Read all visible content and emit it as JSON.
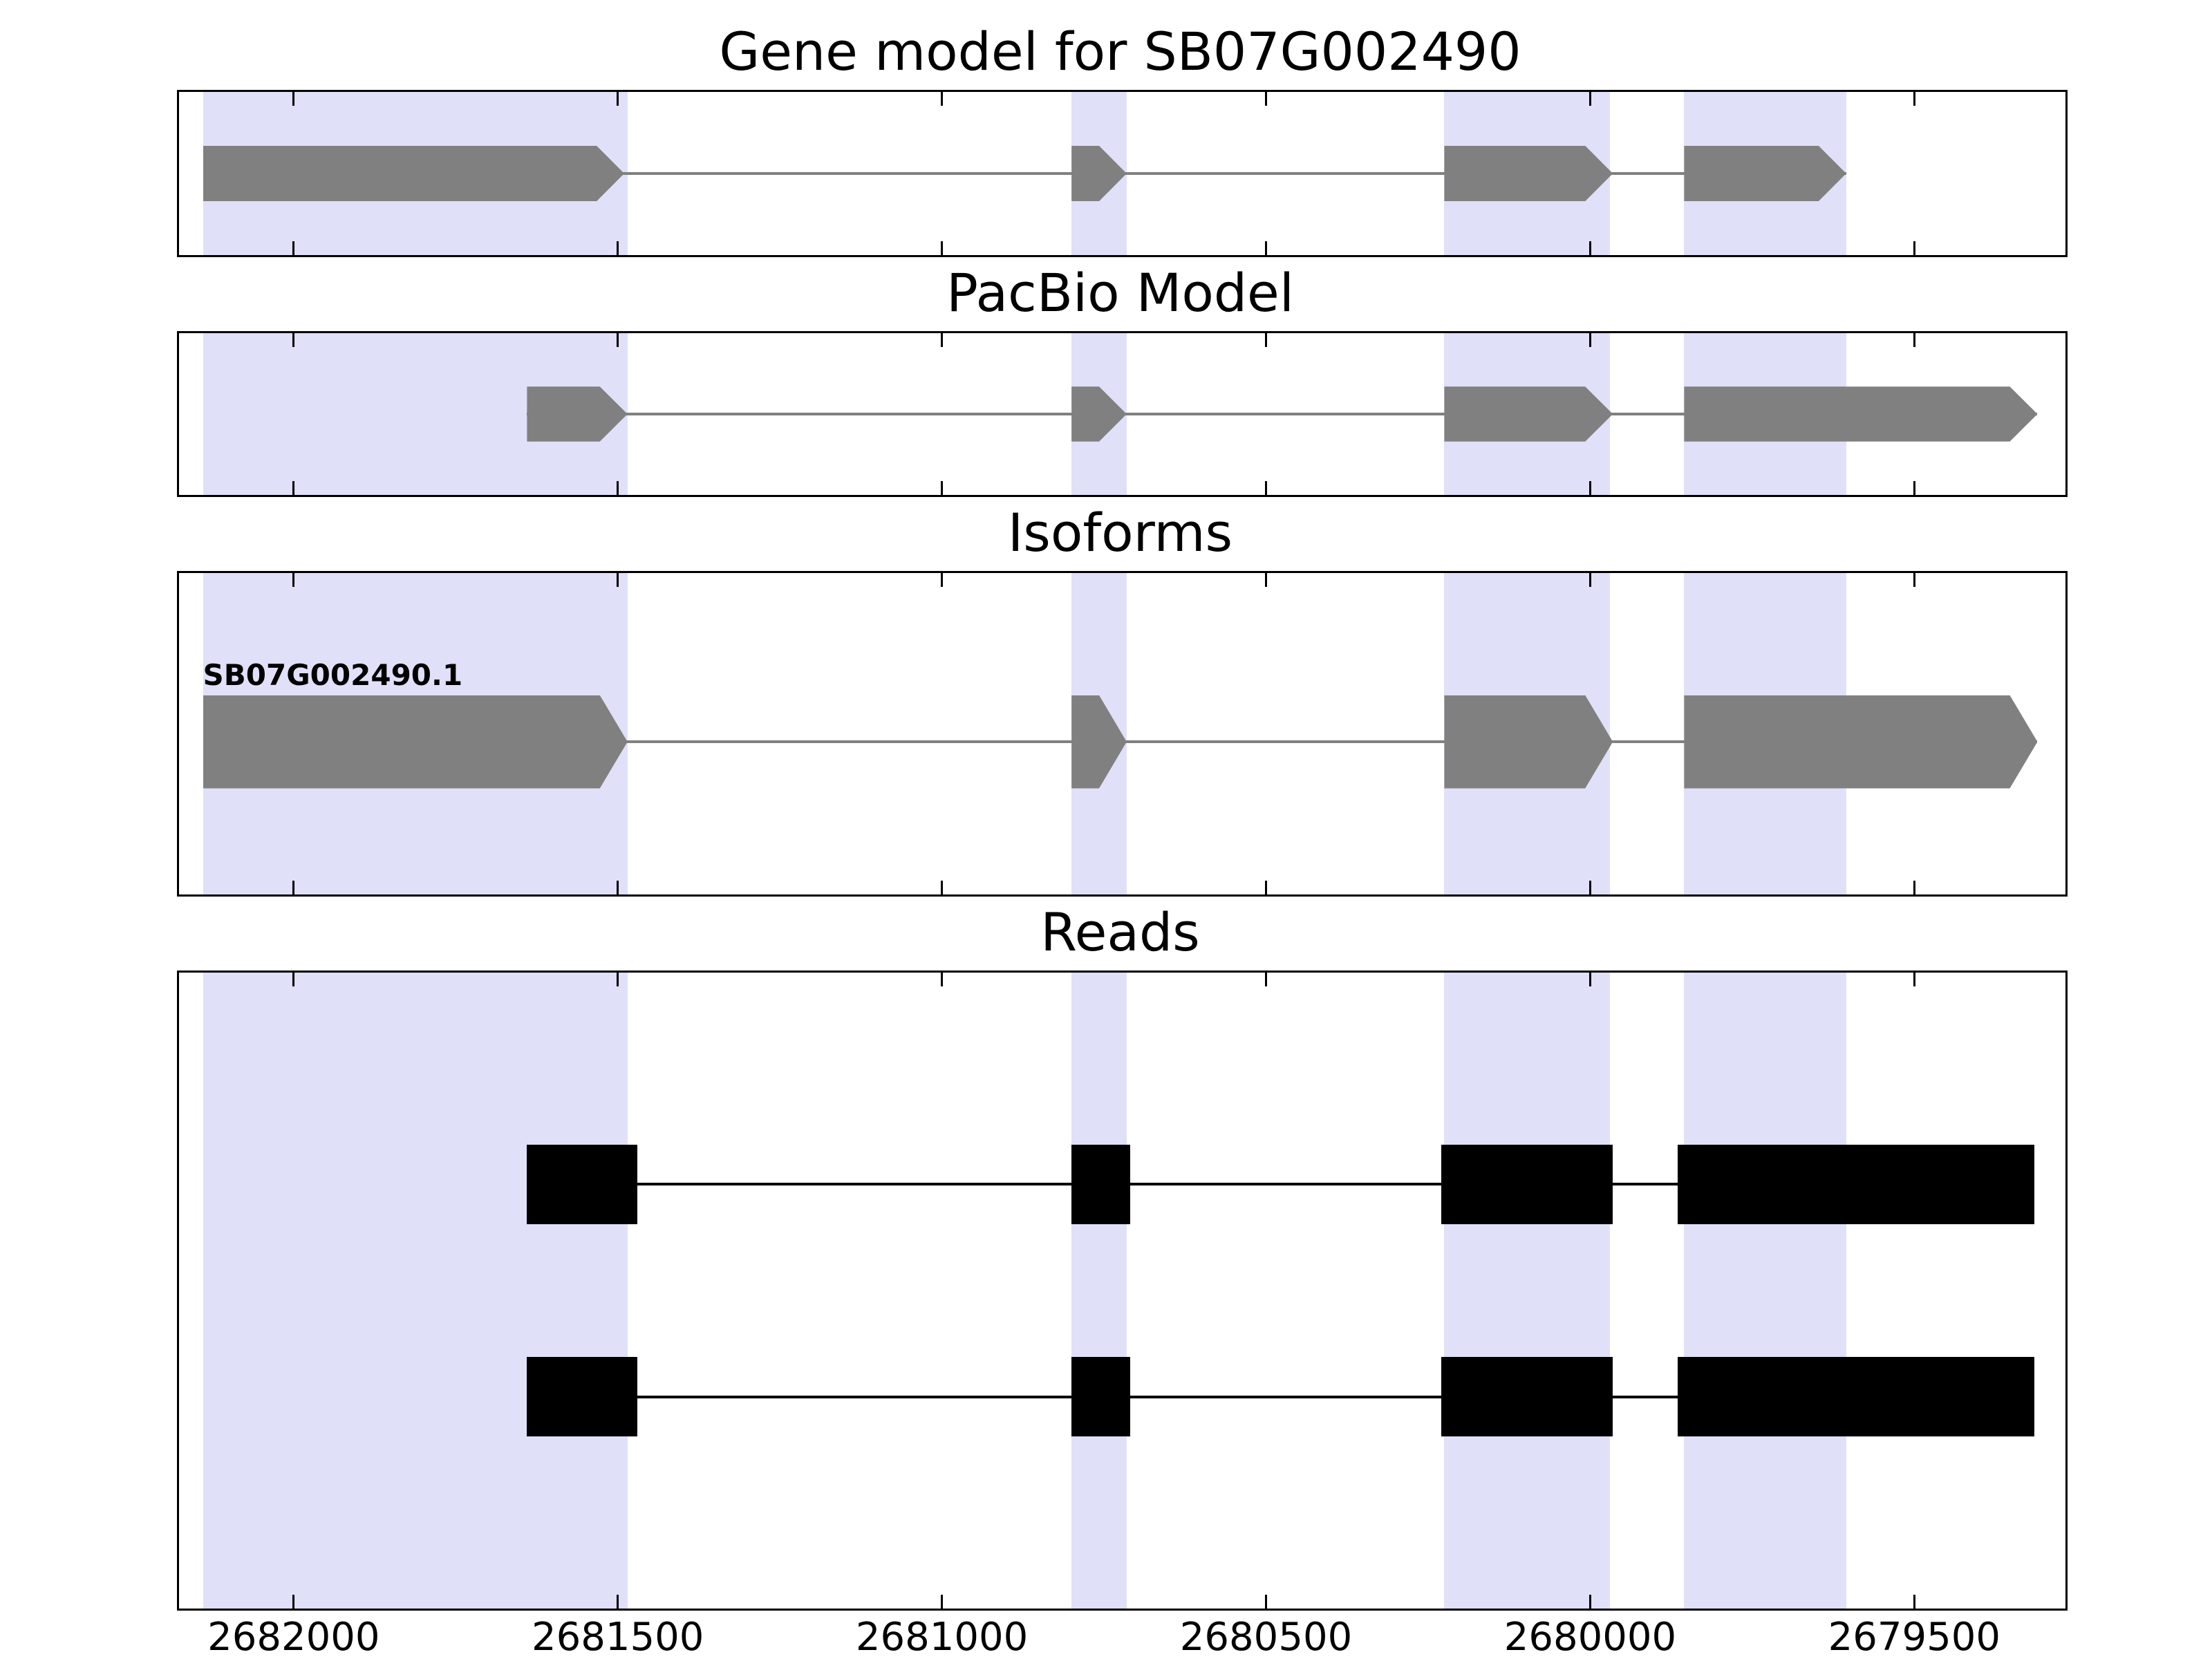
{
  "chart_data": {
    "type": "gene-model-track-plot",
    "gene_id": "SB07G002490",
    "xlim": [
      2682180,
      2679270
    ],
    "x_reversed": true,
    "xticks": [
      2682000,
      2681500,
      2681000,
      2680500,
      2680000,
      2679500
    ],
    "xtick_labels": [
      "2682000",
      "2681500",
      "2681000",
      "2680500",
      "2680000",
      "2679500"
    ],
    "colors": {
      "exon": "#808080",
      "read": "#000000",
      "highlight": "#e0e0f8",
      "axis": "#000000"
    },
    "highlight_regions": [
      {
        "start": 2682140,
        "end": 2681485
      },
      {
        "start": 2680800,
        "end": 2680715
      },
      {
        "start": 2680225,
        "end": 2679970
      },
      {
        "start": 2679855,
        "end": 2679605
      }
    ],
    "panels": [
      {
        "name": "gene-model",
        "title": "Gene model for SB07G002490",
        "tracks": [
          {
            "style": "arrow",
            "color": "#808080",
            "exons": [
              [
                2682140,
                2681490
              ],
              [
                2680800,
                2680715
              ],
              [
                2680225,
                2679965
              ],
              [
                2679855,
                2679605
              ]
            ]
          }
        ]
      },
      {
        "name": "pacbio-model",
        "title": "PacBio Model",
        "tracks": [
          {
            "style": "arrow",
            "color": "#808080",
            "exons": [
              [
                2681640,
                2681485
              ],
              [
                2680800,
                2680715
              ],
              [
                2680225,
                2679965
              ],
              [
                2679855,
                2679310
              ]
            ]
          }
        ]
      },
      {
        "name": "isoforms",
        "title": "Isoforms",
        "tracks": [
          {
            "label": "SB07G002490.1",
            "style": "arrow",
            "color": "#808080",
            "exons": [
              [
                2682140,
                2681485
              ],
              [
                2680800,
                2680715
              ],
              [
                2680225,
                2679965
              ],
              [
                2679855,
                2679310
              ]
            ]
          }
        ]
      },
      {
        "name": "reads",
        "title": "Reads",
        "tracks": [
          {
            "style": "rect",
            "color": "#000000",
            "exons": [
              [
                2681640,
                2681470
              ],
              [
                2680800,
                2680710
              ],
              [
                2680230,
                2679965
              ],
              [
                2679865,
                2679315
              ]
            ]
          },
          {
            "style": "rect",
            "color": "#000000",
            "exons": [
              [
                2681640,
                2681470
              ],
              [
                2680800,
                2680710
              ],
              [
                2680230,
                2679965
              ],
              [
                2679865,
                2679315
              ]
            ]
          }
        ]
      }
    ]
  }
}
